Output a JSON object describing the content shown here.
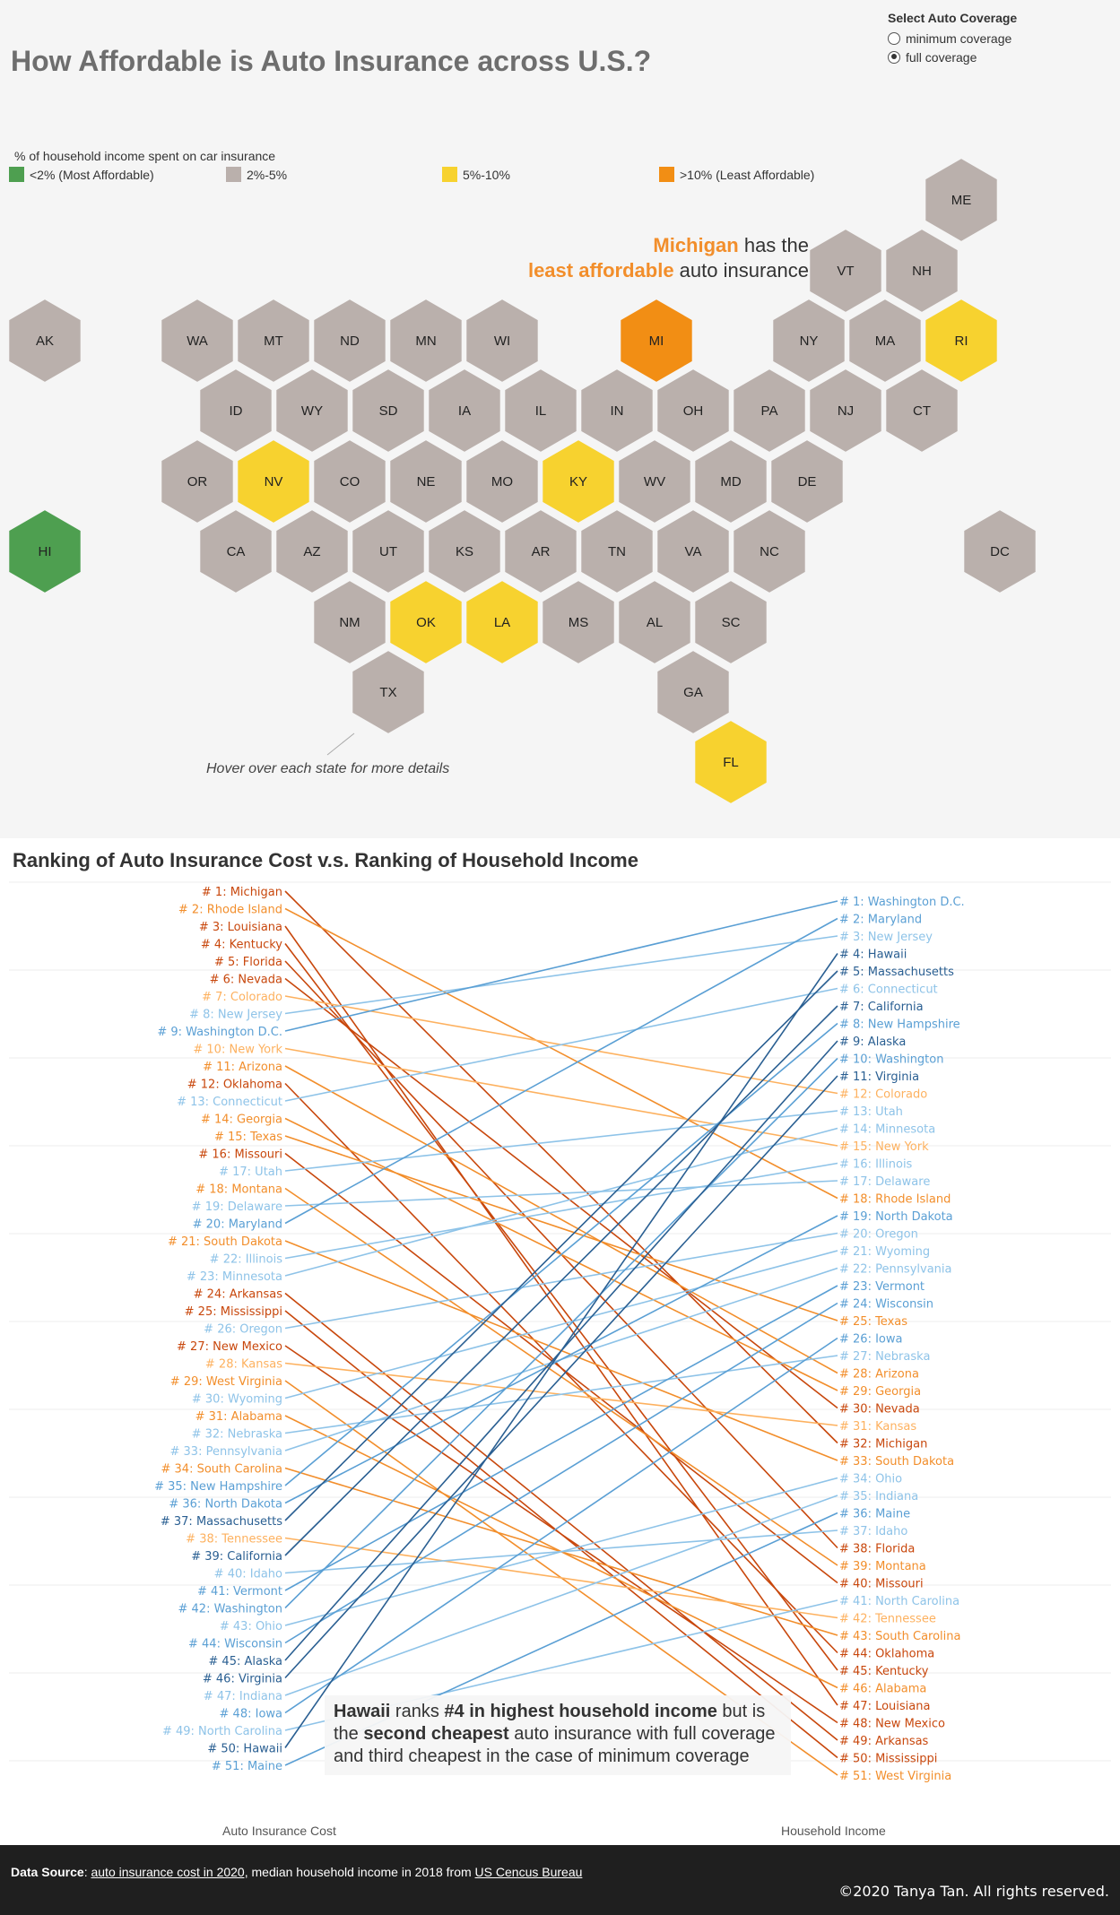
{
  "title": "How Affordable is Auto Insurance across U.S.?",
  "coverage": {
    "heading": "Select  Auto Coverage",
    "options": [
      {
        "label": "minimum coverage",
        "selected": false
      },
      {
        "label": "full coverage",
        "selected": true
      }
    ]
  },
  "legend": {
    "title": "% of household income spent on car insurance",
    "items": [
      {
        "label": "<2% (Most Affordable)",
        "color": "#4e9f50"
      },
      {
        "label": "2%-5%",
        "color": "#bab0ac"
      },
      {
        "label": "5%-10%",
        "color": "#f7d22f"
      },
      {
        "label": ">10% (Least Affordable)",
        "color": "#f28e14"
      }
    ]
  },
  "callout": {
    "state": "Michigan",
    "text1": " has the",
    "highlight": "least affordable",
    "text2": " auto insurance"
  },
  "hex_states": [
    [
      "AK",
      "grey"
    ],
    [
      "WA",
      "grey"
    ],
    [
      "MT",
      "grey"
    ],
    [
      "ND",
      "grey"
    ],
    [
      "MN",
      "grey"
    ],
    [
      "WI",
      "grey"
    ],
    [
      "MI",
      "orange"
    ],
    [
      "NY",
      "grey"
    ],
    [
      "MA",
      "grey"
    ],
    [
      "RI",
      "yellow"
    ],
    [
      "VT",
      "grey"
    ],
    [
      "NH",
      "grey"
    ],
    [
      "ME",
      "grey"
    ],
    [
      "ID",
      "grey"
    ],
    [
      "WY",
      "grey"
    ],
    [
      "SD",
      "grey"
    ],
    [
      "IA",
      "grey"
    ],
    [
      "IL",
      "grey"
    ],
    [
      "IN",
      "grey"
    ],
    [
      "OH",
      "grey"
    ],
    [
      "PA",
      "grey"
    ],
    [
      "NJ",
      "grey"
    ],
    [
      "CT",
      "grey"
    ],
    [
      "OR",
      "grey"
    ],
    [
      "NV",
      "yellow"
    ],
    [
      "CO",
      "grey"
    ],
    [
      "NE",
      "grey"
    ],
    [
      "MO",
      "grey"
    ],
    [
      "KY",
      "yellow"
    ],
    [
      "WV",
      "grey"
    ],
    [
      "MD",
      "grey"
    ],
    [
      "DE",
      "grey"
    ],
    [
      "HI",
      "green"
    ],
    [
      "CA",
      "grey"
    ],
    [
      "AZ",
      "grey"
    ],
    [
      "UT",
      "grey"
    ],
    [
      "KS",
      "grey"
    ],
    [
      "AR",
      "grey"
    ],
    [
      "TN",
      "grey"
    ],
    [
      "VA",
      "grey"
    ],
    [
      "NC",
      "grey"
    ],
    [
      "DC",
      "grey"
    ],
    [
      "NM",
      "grey"
    ],
    [
      "OK",
      "yellow"
    ],
    [
      "LA",
      "yellow"
    ],
    [
      "MS",
      "grey"
    ],
    [
      "AL",
      "grey"
    ],
    [
      "SC",
      "grey"
    ],
    [
      "TX",
      "grey"
    ],
    [
      "GA",
      "grey"
    ],
    [
      "FL",
      "yellow"
    ]
  ],
  "hover_note": "Hover over each state for more details",
  "bump": {
    "title": "Ranking of Auto Insurance Cost v.s. Ranking of Household Income",
    "left_axis": "Auto Insurance Cost",
    "right_axis": "Household Income",
    "states": [
      [
        "Michigan",
        1,
        32,
        "o",
        3
      ],
      [
        "Rhode Island",
        2,
        18,
        "o",
        2
      ],
      [
        "Louisiana",
        3,
        47,
        "o",
        3
      ],
      [
        "Kentucky",
        4,
        45,
        "o",
        3
      ],
      [
        "Florida",
        5,
        38,
        "o",
        3
      ],
      [
        "Nevada",
        6,
        30,
        "o",
        3
      ],
      [
        "Colorado",
        7,
        12,
        "o",
        1
      ],
      [
        "New Jersey",
        8,
        3,
        "b",
        1
      ],
      [
        "Washington D.C.",
        9,
        1,
        "b",
        2
      ],
      [
        "New York",
        10,
        15,
        "o",
        1
      ],
      [
        "Arizona",
        11,
        28,
        "o",
        2
      ],
      [
        "Oklahoma",
        12,
        44,
        "o",
        3
      ],
      [
        "Connecticut",
        13,
        6,
        "b",
        1
      ],
      [
        "Georgia",
        14,
        29,
        "o",
        2
      ],
      [
        "Texas",
        15,
        25,
        "o",
        2
      ],
      [
        "Missouri",
        16,
        40,
        "o",
        3
      ],
      [
        "Utah",
        17,
        13,
        "b",
        1
      ],
      [
        "Montana",
        18,
        39,
        "o",
        2
      ],
      [
        "Delaware",
        19,
        17,
        "b",
        1
      ],
      [
        "Maryland",
        20,
        2,
        "b",
        2
      ],
      [
        "South Dakota",
        21,
        33,
        "o",
        2
      ],
      [
        "Illinois",
        22,
        16,
        "b",
        1
      ],
      [
        "Minnesota",
        23,
        14,
        "b",
        1
      ],
      [
        "Arkansas",
        24,
        49,
        "o",
        3
      ],
      [
        "Mississippi",
        25,
        50,
        "o",
        3
      ],
      [
        "Oregon",
        26,
        20,
        "b",
        1
      ],
      [
        "New Mexico",
        27,
        48,
        "o",
        3
      ],
      [
        "Kansas",
        28,
        31,
        "o",
        1
      ],
      [
        "West Virginia",
        29,
        51,
        "o",
        2
      ],
      [
        "Wyoming",
        30,
        21,
        "b",
        1
      ],
      [
        "Alabama",
        31,
        46,
        "o",
        2
      ],
      [
        "Nebraska",
        32,
        27,
        "b",
        1
      ],
      [
        "Pennsylvania",
        33,
        22,
        "b",
        1
      ],
      [
        "South Carolina",
        34,
        43,
        "o",
        2
      ],
      [
        "New Hampshire",
        35,
        8,
        "b",
        2
      ],
      [
        "North Dakota",
        36,
        19,
        "b",
        2
      ],
      [
        "Massachusetts",
        37,
        5,
        "b",
        3
      ],
      [
        "Tennessee",
        38,
        42,
        "o",
        1
      ],
      [
        "California",
        39,
        7,
        "b",
        3
      ],
      [
        "Idaho",
        40,
        37,
        "b",
        1
      ],
      [
        "Vermont",
        41,
        23,
        "b",
        2
      ],
      [
        "Washington",
        42,
        10,
        "b",
        2
      ],
      [
        "Ohio",
        43,
        34,
        "b",
        1
      ],
      [
        "Wisconsin",
        44,
        24,
        "b",
        2
      ],
      [
        "Alaska",
        45,
        9,
        "b",
        3
      ],
      [
        "Virginia",
        46,
        11,
        "b",
        3
      ],
      [
        "Indiana",
        47,
        35,
        "b",
        1
      ],
      [
        "Iowa",
        48,
        26,
        "b",
        2
      ],
      [
        "North Carolina",
        49,
        41,
        "b",
        1
      ],
      [
        "Hawaii",
        50,
        4,
        "b",
        3
      ],
      [
        "Maine",
        51,
        36,
        "b",
        2
      ]
    ]
  },
  "hawaii_note": {
    "state": "Hawaii",
    "t1": " ranks ",
    "rank": "#4 in highest household income",
    "t2": " but is the ",
    "cheap": "second cheapest",
    "t3": " auto insurance with full coverage and third cheapest in the case of minimum coverage"
  },
  "footer": {
    "label": "Data Source",
    "sep": ": ",
    "link1": "auto insurance cost in 2020,",
    "mid": " median household income in 2018 from ",
    "link2": "US Cencus Bureau",
    "copyright": "©2020 Tanya Tan. All rights reserved."
  }
}
